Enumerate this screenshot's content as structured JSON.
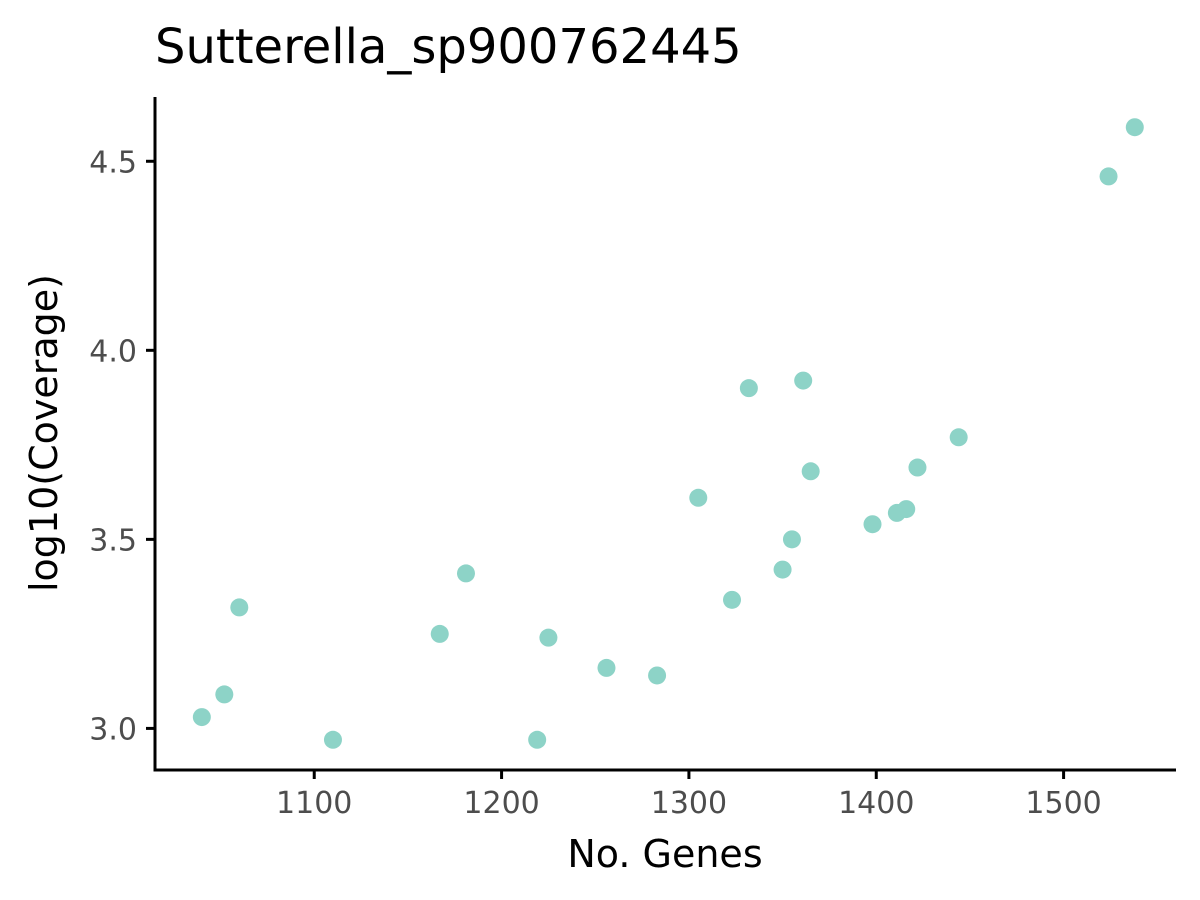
{
  "chart_data": {
    "type": "scatter",
    "title": "Sutterella_sp900762445",
    "xlabel": "No. Genes",
    "ylabel": "log10(Coverage)",
    "xlim": [
      1015,
      1560
    ],
    "ylim": [
      2.89,
      4.67
    ],
    "x_ticks": [
      1100,
      1200,
      1300,
      1400,
      1500
    ],
    "y_ticks": [
      3.0,
      3.5,
      4.0,
      4.5
    ],
    "x_tick_labels": [
      "1100",
      "1200",
      "1300",
      "1400",
      "1500"
    ],
    "y_tick_labels": [
      "3.0",
      "3.5",
      "4.0",
      "4.5"
    ],
    "grid": false,
    "point_color": "#8dd3c7",
    "points": [
      {
        "x": 1040,
        "y": 3.03
      },
      {
        "x": 1052,
        "y": 3.09
      },
      {
        "x": 1060,
        "y": 3.32
      },
      {
        "x": 1110,
        "y": 2.97
      },
      {
        "x": 1167,
        "y": 3.25
      },
      {
        "x": 1181,
        "y": 3.41
      },
      {
        "x": 1219,
        "y": 2.97
      },
      {
        "x": 1225,
        "y": 3.24
      },
      {
        "x": 1256,
        "y": 3.16
      },
      {
        "x": 1283,
        "y": 3.14
      },
      {
        "x": 1305,
        "y": 3.61
      },
      {
        "x": 1323,
        "y": 3.34
      },
      {
        "x": 1332,
        "y": 3.9
      },
      {
        "x": 1350,
        "y": 3.42
      },
      {
        "x": 1355,
        "y": 3.5
      },
      {
        "x": 1361,
        "y": 3.92
      },
      {
        "x": 1365,
        "y": 3.68
      },
      {
        "x": 1398,
        "y": 3.54
      },
      {
        "x": 1411,
        "y": 3.57
      },
      {
        "x": 1416,
        "y": 3.58
      },
      {
        "x": 1422,
        "y": 3.69
      },
      {
        "x": 1444,
        "y": 3.77
      },
      {
        "x": 1524,
        "y": 4.46
      },
      {
        "x": 1538,
        "y": 4.59
      }
    ]
  }
}
